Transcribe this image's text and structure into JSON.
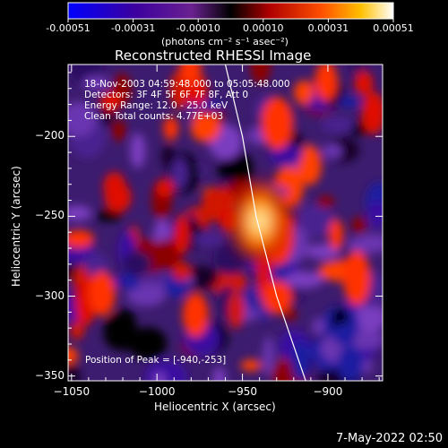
{
  "colorbar": {
    "tick_labels": [
      "-0.00051",
      "-0.00031",
      "-0.00010",
      "0.00010",
      "0.00031",
      "0.00051"
    ],
    "units_label": "(photons cm⁻² s⁻¹ asec⁻²)",
    "colors": [
      "#0000ff",
      "#4b0082",
      "#8a2be2",
      "#000000",
      "#c00000",
      "#ff6000",
      "#ffd000",
      "#ffffff"
    ]
  },
  "image_info": {
    "time_range": "18-Nov-2003 04:59:48.000 to 05:05:48.000",
    "detectors": "Detectors: 3F 4F 5F 6F 7F 8F, Att 0",
    "energy_range": "Energy Range: 12.0 - 25.0 keV",
    "method": "Clean     Total counts: 4.77E+03"
  },
  "peak_label": "Position of Peak = [-940,-253]",
  "footer_date": "7-May-2022 02:50",
  "chart_data": {
    "type": "heatmap",
    "title": "Reconstructed RHESSI Image",
    "xlabel": "Heliocentric X (arcsec)",
    "ylabel": "Heliocentric Y (arcsec)",
    "xlim": [
      -1052,
      -868
    ],
    "ylim": [
      -353,
      -155
    ],
    "x_ticks": [
      -1050,
      -1000,
      -950,
      -900
    ],
    "y_ticks": [
      -200,
      -250,
      -300,
      -350
    ],
    "x_tick_labels": [
      "−1050",
      "−1000",
      "−950",
      "−900"
    ],
    "y_tick_labels": [
      "−200",
      "−250",
      "−300",
      "−350"
    ],
    "peak": {
      "x": -940,
      "y": -253
    },
    "limb_curve": [
      [
        -960,
        -155
      ],
      [
        -950,
        -200
      ],
      [
        -942,
        -250
      ],
      [
        -930,
        -300
      ],
      [
        -913,
        -353
      ]
    ]
  }
}
